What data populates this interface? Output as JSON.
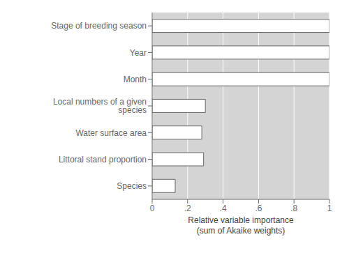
{
  "chart_data": {
    "type": "bar",
    "orientation": "horizontal",
    "categories": [
      "Species",
      "Littoral stand proportion",
      "Water surface area",
      "Local numbers of a given species",
      "Month",
      "Year",
      "Stage of breeding season"
    ],
    "values": [
      0.13,
      0.29,
      0.28,
      0.3,
      1.0,
      1.0,
      1.0
    ],
    "color": "#ffffff",
    "xlabel": "Relative variable importance\n(sum of Akaike weights)",
    "xlim": [
      0,
      1.0
    ],
    "xticks": [
      0,
      {
        "value": 0.2,
        "label": ".2"
      },
      {
        "value": 0.4,
        "label": ".4"
      },
      {
        "value": 0.6,
        "label": ".6"
      },
      {
        "value": 0.8,
        "label": ".8"
      },
      1
    ],
    "grid": true
  }
}
